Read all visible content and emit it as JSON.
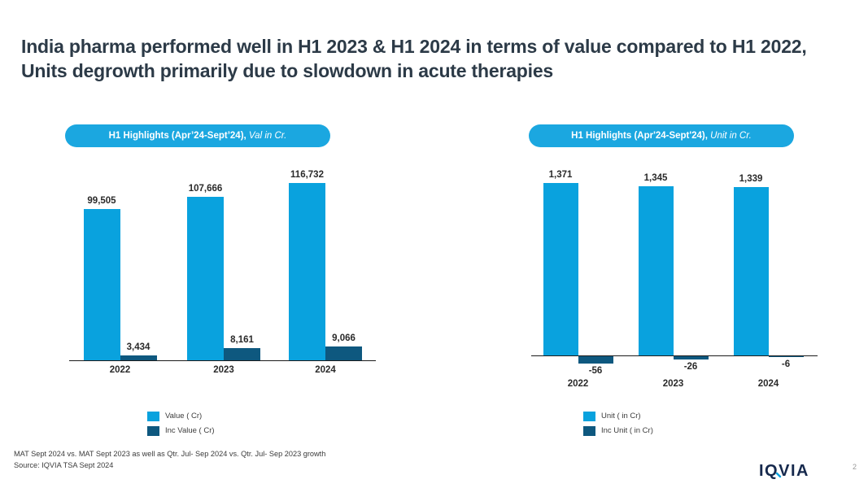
{
  "title": {
    "text": "India pharma performed well in H1 2023 & H1 2024 in terms of value compared to H1 2022, Units degrowth primarily due to slowdown in acute therapies"
  },
  "colors": {
    "primary_cyan": "#09A2DE",
    "dark_navy": "#0E587F",
    "pill_background": "#1BA7E0",
    "title_text": "#2C3A47",
    "axis_line": "#1b1b1b"
  },
  "chart_data": [
    {
      "type": "bar",
      "title": "H1 Highlights (Apr'24-Sept'24), Val in Cr.",
      "title_bold": "H1 Highlights (Apr’24-Sept’24),",
      "title_italic": " Val in Cr.",
      "categories": [
        "2022",
        "2023",
        "2024"
      ],
      "series": [
        {
          "name": "Value ( Cr)",
          "color": "#09A2DE",
          "values": [
            99505,
            107666,
            116732
          ],
          "labels": [
            "99,505",
            "107,666",
            "116,732"
          ]
        },
        {
          "name": "Inc Value ( Cr)",
          "color": "#0E587F",
          "values": [
            3434,
            8161,
            9066
          ],
          "labels": [
            "3,434",
            "8,161",
            "9,066"
          ]
        }
      ],
      "ylim": [
        0,
        120000
      ],
      "grid": false,
      "legend_position": "bottom-left",
      "xlabel": "",
      "ylabel": ""
    },
    {
      "type": "bar",
      "title": "H1 Highlights (Apr'24-Sept'24), Unit in Cr.",
      "title_bold": "H1 Highlights (Apr'24-Sept'24),",
      "title_italic": " Unit in Cr.",
      "categories": [
        "2022",
        "2023",
        "2024"
      ],
      "series": [
        {
          "name": "Unit ( in Cr)",
          "color": "#09A2DE",
          "values": [
            1371,
            1345,
            1339
          ],
          "labels": [
            "1,371",
            "1,345",
            "1,339"
          ]
        },
        {
          "name": "Inc Unit ( in Cr)",
          "color": "#0E587F",
          "values": [
            -56,
            -26,
            -6
          ],
          "labels": [
            "-56",
            "-26",
            "-6"
          ]
        }
      ],
      "ylim": [
        -100,
        1400
      ],
      "grid": false,
      "legend_position": "bottom-left",
      "xlabel": "",
      "ylabel": ""
    }
  ],
  "footer": {
    "line1": "MAT Sept 2024 vs. MAT Sept 2023 as well as Qtr. Jul- Sep 2024 vs. Qtr. Jul- Sep 2023 growth",
    "line2": "Source: IQVIA TSA Sept 2024"
  },
  "logo": {
    "icon": "iqvia-lines-icon",
    "text": "IQVIA"
  },
  "page_number": "2"
}
